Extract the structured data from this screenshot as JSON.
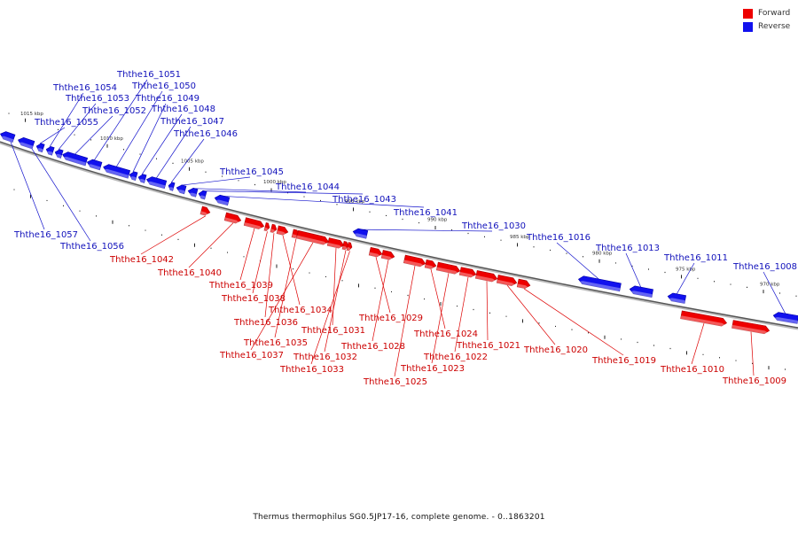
{
  "legend": [
    {
      "label": "Forward",
      "color": "#ee0000"
    },
    {
      "label": "Reverse",
      "color": "#1111ee"
    }
  ],
  "caption": "Thermus thermophilus SG0.5JP17-16, complete genome. - 0..1863201",
  "axis_ticks": [
    "1015 kbp",
    "1010 kbp",
    "1005 kbp",
    "1000 kbp",
    "995 kbp",
    "990 kbp",
    "985 kbp",
    "980 kbp",
    "975 kbp",
    "970 kbp"
  ],
  "reverse_genes": [
    "Ththe16_1057",
    "Ththe16_1056",
    "Ththe16_1055",
    "Ththe16_1054",
    "Ththe16_1053",
    "Ththe16_1052",
    "Ththe16_1051",
    "Ththe16_1050",
    "Ththe16_1049",
    "Ththe16_1048",
    "Ththe16_1047",
    "Ththe16_1046",
    "Ththe16_1045",
    "Ththe16_1044",
    "Ththe16_1043",
    "Ththe16_1041",
    "Ththe16_1030",
    "Ththe16_1016",
    "Ththe16_1013",
    "Ththe16_1011",
    "Ththe16_1008"
  ],
  "forward_genes": [
    "Ththe16_1042",
    "Ththe16_1040",
    "Ththe16_1039",
    "Ththe16_1038",
    "Ththe16_1036",
    "Ththe16_1034",
    "Ththe16_1035",
    "Ththe16_1037",
    "Ththe16_1031",
    "Ththe16_1032",
    "Ththe16_1033",
    "Ththe16_1029",
    "Ththe16_1028",
    "Ththe16_1025",
    "Ththe16_1024",
    "Ththe16_1023",
    "Ththe16_1022",
    "Ththe16_1021",
    "Ththe16_1020",
    "Ththe16_1019",
    "Ththe16_1010",
    "Ththe16_1009"
  ]
}
